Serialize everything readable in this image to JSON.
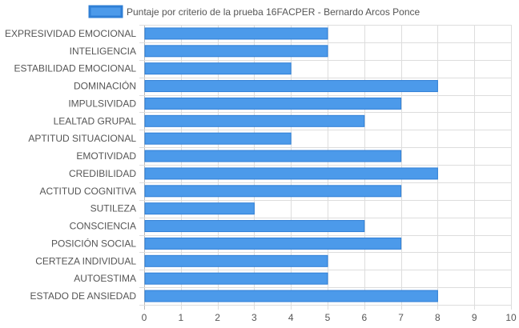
{
  "chart_data": {
    "type": "bar",
    "orientation": "horizontal",
    "categories": [
      "EXPRESIVIDAD EMOCIONAL",
      "INTELIGENCIA",
      "ESTABILIDAD EMOCIONAL",
      "DOMINACIÓN",
      "IMPULSIVIDAD",
      "LEALTAD GRUPAL",
      "APTITUD SITUACIONAL",
      "EMOTIVIDAD",
      "CREDIBILIDAD",
      "ACTITUD COGNITIVA",
      "SUTILEZA",
      "CONSCIENCIA",
      "POSICIÓN SOCIAL",
      "CERTEZA INDIVIDUAL",
      "AUTOESTIMA",
      "ESTADO DE ANSIEDAD"
    ],
    "series": [
      {
        "name": "Puntaje por criterio de la prueba 16FACPER - Bernardo Arcos Ponce",
        "values": [
          5,
          5,
          4,
          8,
          7,
          6,
          4,
          7,
          8,
          7,
          3,
          6,
          7,
          5,
          5,
          8
        ]
      }
    ],
    "xlim": [
      0,
      10
    ],
    "x_ticks": [
      "0",
      "1",
      "2",
      "3",
      "4",
      "5",
      "6",
      "7",
      "8",
      "9",
      "10"
    ],
    "grid": true,
    "legend_position": "top",
    "colors": {
      "bar_fill": "#4c9aea",
      "bar_stroke": "#2f7fd6",
      "grid": "#dddddd",
      "axis_text": "#555555"
    }
  }
}
